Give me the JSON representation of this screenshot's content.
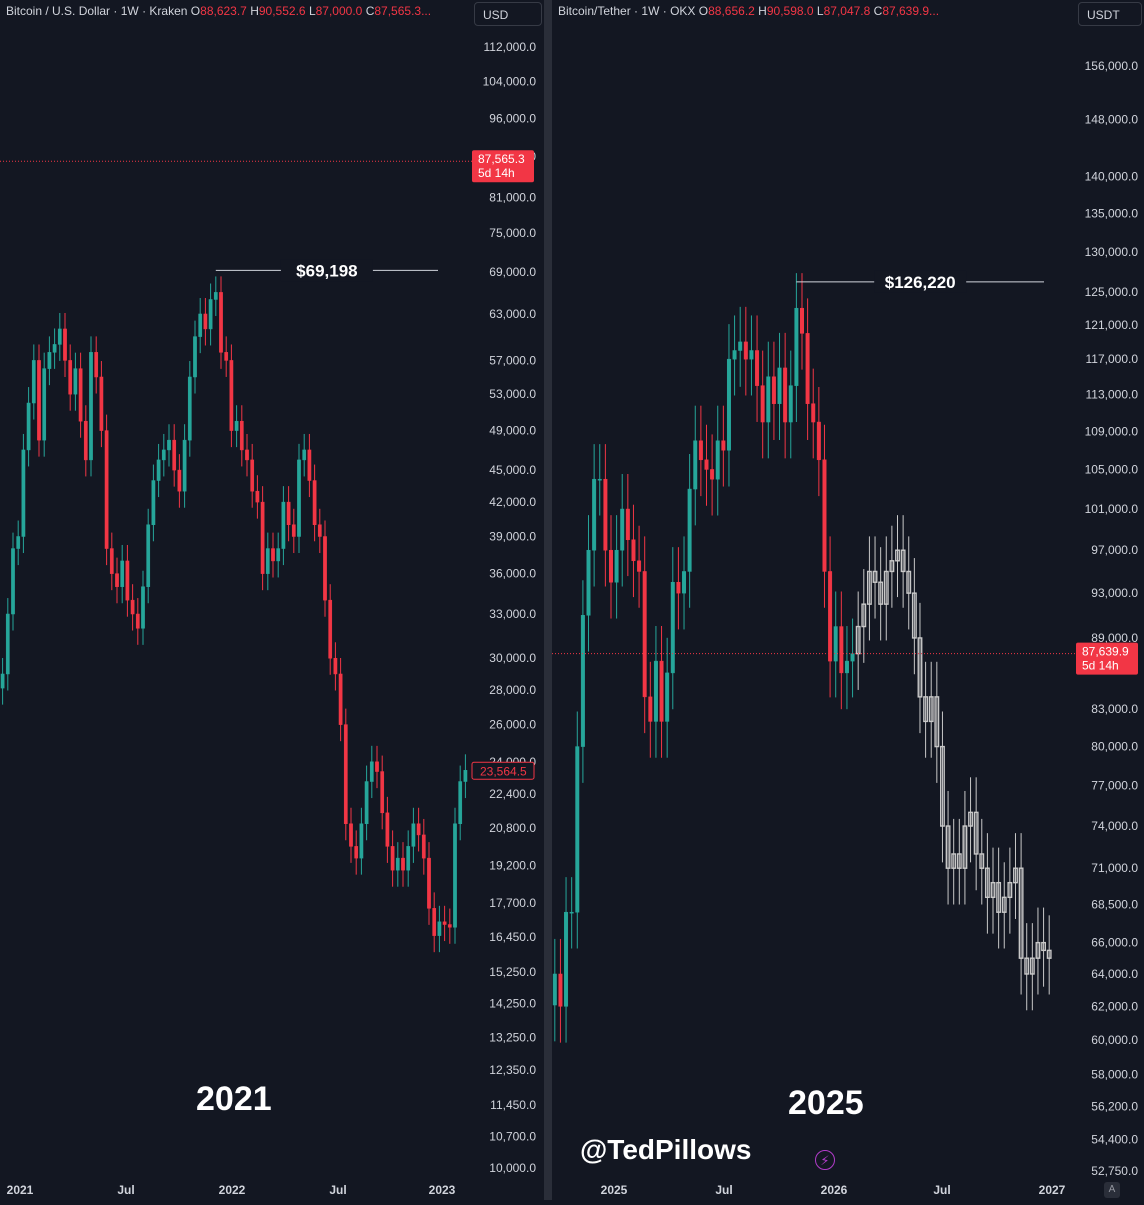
{
  "left": {
    "header": {
      "symbol": "Bitcoin / U.S. Dollar",
      "interval": "1W",
      "exchange": "Kraken",
      "o": "88,623.7",
      "h": "90,552.6",
      "l": "87,000.0",
      "c": "87,565.3..."
    },
    "currency": "USD",
    "year_label": "2021",
    "price_badge": {
      "price": "87,565.3",
      "countdown": "5d 14h"
    },
    "hist_badge": "23,564.5",
    "peak_label": "$69,198",
    "x_labels": [
      "2021",
      "Jul",
      "2022",
      "Jul",
      "2023"
    ],
    "y_labels": [
      "112,000.0",
      "104,000.0",
      "96,000.0",
      "88,500.0",
      "81,000.0",
      "75,000.0",
      "69,000.0",
      "63,000.0",
      "57,000.0",
      "53,000.0",
      "49,000.0",
      "45,000.0",
      "42,000.0",
      "39,000.0",
      "36,000.0",
      "33,000.0",
      "30,000.0",
      "28,000.0",
      "26,000.0",
      "24,000.0",
      "22,400.0",
      "20,800.0",
      "19,200.0",
      "17,700.0",
      "16,450.0",
      "15,250.0",
      "14,250.0",
      "13,250.0",
      "12,350.0",
      "11,450.0",
      "10,700.0",
      "10,000.0"
    ]
  },
  "right": {
    "header": {
      "symbol": "Bitcoin/Tether",
      "interval": "1W",
      "exchange": "OKX",
      "o": "88,656.2",
      "h": "90,598.0",
      "l": "87,047.8",
      "c": "87,639.9..."
    },
    "currency": "USDT",
    "year_label": "2025",
    "price_badge": {
      "price": "87,639.9",
      "countdown": "5d 14h"
    },
    "peak_label": "$126,220",
    "x_labels": [
      "2025",
      "Jul",
      "2026",
      "Jul",
      "2027"
    ],
    "y_labels": [
      "156,000.0",
      "148,000.0",
      "140,000.0",
      "135,000.0",
      "130,000.0",
      "125,000.0",
      "121,000.0",
      "117,000.0",
      "113,000.0",
      "109,000.0",
      "105,000.0",
      "101,000.0",
      "97,000.0",
      "93,000.0",
      "89,000.0",
      "83,000.0",
      "80,000.0",
      "77,000.0",
      "74,000.0",
      "71,000.0",
      "68,500.0",
      "66,000.0",
      "64,000.0",
      "62,000.0",
      "60,000.0",
      "58,000.0",
      "56,200.0",
      "54,400.0",
      "52,750.0"
    ]
  },
  "watermark": "@TedPillows",
  "colors": {
    "bg": "#131722",
    "up": "#26a69a",
    "down": "#f23645",
    "projection": "#c8c8c8",
    "grid_text": "#d1d4dc"
  },
  "chart_data": [
    {
      "type": "candlestick",
      "title": "Bitcoin / U.S. Dollar · 1W · Kraken",
      "scale": "log",
      "ylim": [
        10000,
        112000
      ],
      "x_range": [
        "2021-01",
        "2023-01"
      ],
      "peak": 69198,
      "last_close": 87565.3,
      "annotation": "$69,198",
      "closes": [
        29000,
        33000,
        38000,
        39000,
        47000,
        52000,
        57000,
        48000,
        56000,
        58000,
        59000,
        61000,
        57000,
        53000,
        56000,
        50000,
        46000,
        58000,
        55000,
        49000,
        38000,
        36000,
        35000,
        37000,
        34000,
        33000,
        32000,
        35000,
        40000,
        44000,
        46000,
        47000,
        48000,
        45000,
        43000,
        48000,
        55000,
        60000,
        63000,
        61000,
        65000,
        66000,
        58000,
        57000,
        49000,
        50000,
        47000,
        46000,
        43000,
        42000,
        36000,
        38000,
        37000,
        38000,
        42000,
        40000,
        39000,
        46000,
        47000,
        44000,
        40000,
        39000,
        34000,
        30000,
        29000,
        26000,
        21000,
        20000,
        19500,
        21000,
        23000,
        24000,
        23500,
        21500,
        20000,
        19000,
        19500,
        19000,
        20000,
        21000,
        20500,
        19500,
        17500,
        16500,
        17000,
        16900,
        16800,
        21000,
        23000,
        23564.5
      ]
    },
    {
      "type": "candlestick",
      "title": "Bitcoin/Tether · 1W · OKX",
      "scale": "log",
      "ylim": [
        52750,
        156000
      ],
      "x_range": [
        "2024-11",
        "2027-01"
      ],
      "peak": 126220,
      "last_close": 87639.9,
      "annotation": "$126,220",
      "closes": [
        64000,
        62000,
        68000,
        68000,
        80000,
        91000,
        97000,
        104000,
        104000,
        97000,
        94000,
        97000,
        101000,
        98000,
        96000,
        95000,
        84000,
        82000,
        87000,
        82000,
        86000,
        94000,
        93000,
        95000,
        103000,
        108000,
        106000,
        105000,
        104000,
        108000,
        107000,
        117000,
        118000,
        119000,
        117000,
        118000,
        114000,
        110000,
        115000,
        112000,
        116000,
        110000,
        114000,
        123000,
        120000,
        112000,
        110000,
        106000,
        95000,
        87000,
        90000,
        86000,
        87000,
        87639.9
      ],
      "projection_closes": [
        90000,
        92000,
        95000,
        94000,
        92000,
        95000,
        96000,
        97000,
        95000,
        93000,
        89000,
        84000,
        82000,
        84000,
        80000,
        74000,
        71000,
        72000,
        71000,
        74000,
        75000,
        72000,
        71000,
        69000,
        70000,
        68000,
        69000,
        70000,
        71000,
        65000,
        64000,
        65000,
        66000,
        65500,
        65000
      ]
    }
  ]
}
